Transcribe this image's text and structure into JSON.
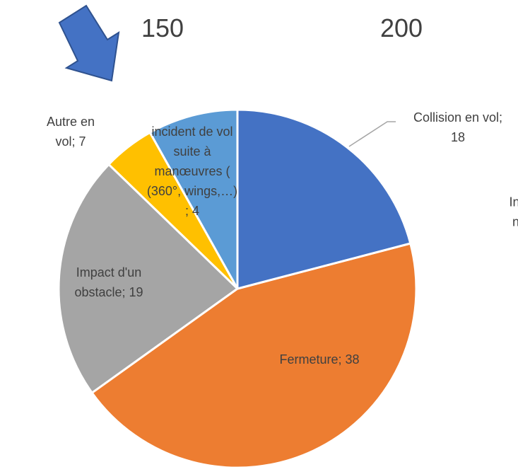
{
  "chart_data": {
    "type": "pie",
    "categories": [
      "Collision en vol",
      "Fermeture",
      "Impact d'un obstacle",
      "incident de vol suite à manœuvres ( (360°, wings,…)",
      "Autre en vol"
    ],
    "values": [
      18,
      38,
      19,
      4,
      7
    ],
    "value_labels": [
      "Collision en vol;\n18",
      "Fermeture; 38",
      "Impact d'un\nobstacle; 19",
      "incident de vol\nsuite à\nmanœuvres (\n(360°, wings,…)\n; 4",
      "Autre en\nvol; 7"
    ],
    "colors": [
      "#4472c4",
      "#ed7d31",
      "#a5a5a5",
      "#ffc000",
      "#5b9bd5"
    ],
    "annotations": [
      "150",
      "200",
      "In",
      "n"
    ]
  }
}
